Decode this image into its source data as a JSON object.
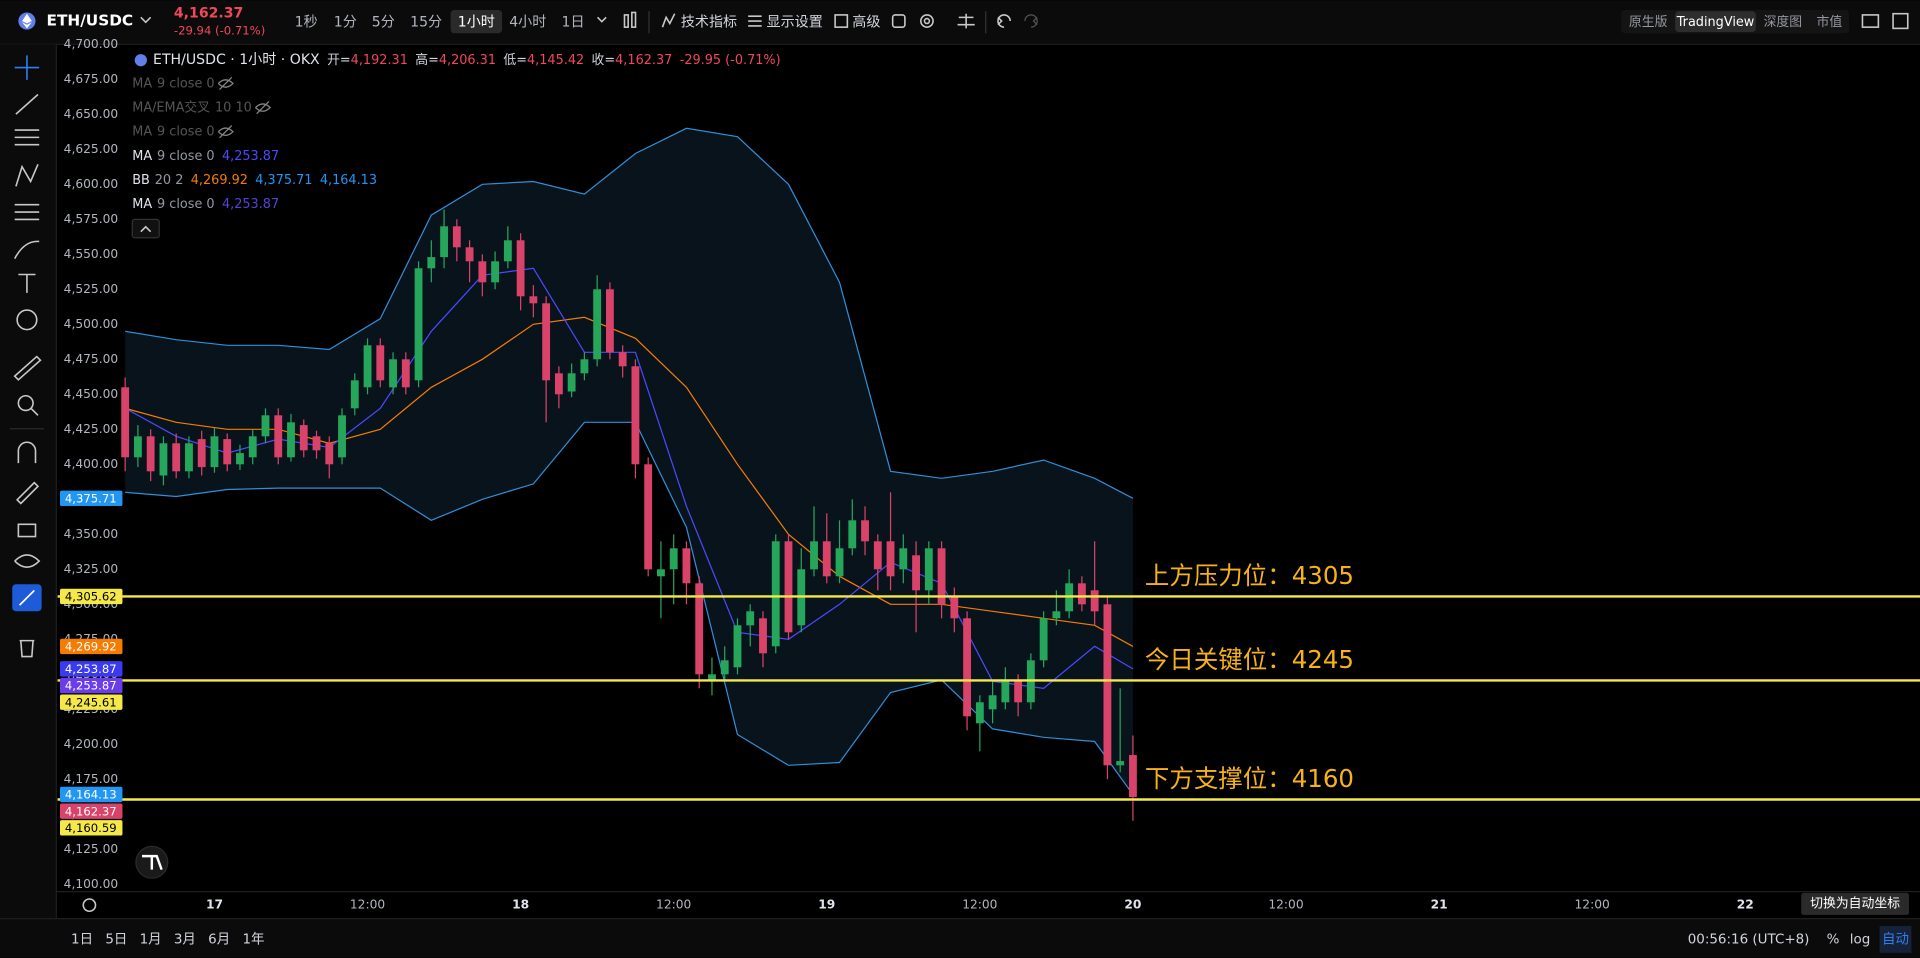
{
  "toolbar": {
    "symbol": "ETH/USDC",
    "price": "4,162.37",
    "change": "-29.94 (-0.71%)",
    "intervals": [
      "1秒",
      "1分",
      "5分",
      "15分",
      "1小时",
      "4小时",
      "1日"
    ],
    "active_interval": 4,
    "tools": [
      "技术指标",
      "显示设置",
      "高级"
    ],
    "views": [
      "原生版",
      "TradingView",
      "深度图",
      "市值"
    ],
    "active_view": 1
  },
  "legend": {
    "symbol": "ETH/USDC · 1小时 · OKX",
    "ohlc": [
      {
        "key": "开=",
        "value": "4,192.31"
      },
      {
        "key": "高=",
        "value": "4,206.31"
      },
      {
        "key": "低=",
        "value": "4,145.42"
      },
      {
        "key": "收=",
        "value": "4,162.37"
      }
    ],
    "change": "-29.95 (-0.71%)",
    "indicators": [
      {
        "name": "MA",
        "params": "9 close 0",
        "hidden": true
      },
      {
        "name": "MA/EMA交叉",
        "params": "10 10",
        "hidden": true
      },
      {
        "name": "MA",
        "params": "9 close 0",
        "hidden": true
      },
      {
        "name": "MA",
        "params": "9 close 0",
        "values": [
          {
            "text": "4,253.87",
            "color": "#4a4aff"
          }
        ]
      },
      {
        "name": "BB",
        "params": "20 2",
        "values": [
          {
            "text": "4,269.92",
            "color": "#f57c00"
          },
          {
            "text": "4,375.71",
            "color": "#2196f3"
          },
          {
            "text": "4,164.13",
            "color": "#2196f3"
          }
        ]
      },
      {
        "name": "MA",
        "params": "9 close 0",
        "values": [
          {
            "text": "4,253.87",
            "color": "#5b3fd6"
          }
        ]
      }
    ]
  },
  "chart_data": {
    "type": "candlestick",
    "categories": [
      null,
      null,
      null,
      null,
      null,
      null,
      null,
      null,
      null,
      null,
      null,
      null,
      null,
      null,
      null,
      null,
      null,
      null,
      null,
      null,
      null,
      null,
      null,
      null,
      null,
      null,
      null,
      null,
      null,
      null,
      null,
      null,
      null,
      null,
      null,
      null,
      null,
      null,
      null,
      null,
      null,
      null,
      null,
      null,
      null,
      null,
      null,
      null,
      null,
      null,
      null,
      null,
      null,
      null,
      null,
      null,
      null,
      null,
      null,
      null,
      null,
      null,
      null,
      null,
      null,
      null,
      null,
      null,
      null,
      null,
      null,
      null,
      null,
      null,
      null,
      null,
      null,
      null,
      null,
      null
    ],
    "open": [
      4455,
      4405,
      4420,
      4392,
      4415,
      4395,
      4418,
      4398,
      4418,
      4400,
      4405,
      4420,
      4435,
      4405,
      4428,
      4420,
      4415,
      4405,
      4440,
      4455,
      4485,
      4455,
      4475,
      4460,
      4540,
      4548,
      4570,
      4555,
      4545,
      4530,
      4545,
      4560,
      4520,
      4515,
      4465,
      4452,
      4465,
      4475,
      4525,
      4480,
      4470,
      4400,
      4320,
      4325,
      4340,
      4315,
      4245,
      4250,
      4255,
      4285,
      4290,
      4270,
      4345,
      4285,
      4325,
      4345,
      4320,
      4340,
      4360,
      4345,
      4345,
      4325,
      4335,
      4310,
      4340,
      4305,
      4290,
      4215,
      4225,
      4230,
      4245,
      4230,
      4260,
      4290,
      4295,
      4315,
      4310,
      4300,
      4185,
      4192.31
    ],
    "high": [
      4462,
      4428,
      4425,
      4420,
      4422,
      4420,
      4424,
      4426,
      4422,
      4414,
      4425,
      4440,
      4440,
      4436,
      4432,
      4424,
      4420,
      4440,
      4465,
      4490,
      4490,
      4480,
      4480,
      4545,
      4560,
      4582,
      4575,
      4560,
      4550,
      4552,
      4570,
      4565,
      4528,
      4520,
      4470,
      4472,
      4480,
      4535,
      4530,
      4485,
      4475,
      4405,
      4345,
      4350,
      4345,
      4320,
      4262,
      4270,
      4290,
      4300,
      4295,
      4350,
      4350,
      4340,
      4370,
      4365,
      4360,
      4375,
      4370,
      4350,
      4380,
      4350,
      4345,
      4345,
      4345,
      4312,
      4295,
      4235,
      4245,
      4255,
      4250,
      4265,
      4295,
      4310,
      4325,
      4320,
      4345,
      4305,
      4240,
      4206.31
    ],
    "low": [
      4395,
      4398,
      4388,
      4385,
      4390,
      4390,
      4392,
      4394,
      4395,
      4396,
      4400,
      4415,
      4400,
      4402,
      4405,
      4404,
      4390,
      4400,
      4435,
      4450,
      4455,
      4450,
      4450,
      4455,
      4530,
      4540,
      4545,
      4530,
      4520,
      4525,
      4540,
      4510,
      4505,
      4430,
      4440,
      4448,
      4460,
      4470,
      4475,
      4462,
      4390,
      4320,
      4290,
      4300,
      4300,
      4240,
      4235,
      4245,
      4250,
      4270,
      4255,
      4265,
      4275,
      4280,
      4320,
      4315,
      4315,
      4335,
      4335,
      4310,
      4310,
      4315,
      4280,
      4300,
      4290,
      4280,
      4210,
      4195,
      4215,
      4225,
      4220,
      4225,
      4255,
      4285,
      4290,
      4295,
      4285,
      4175,
      4180,
      4145.42
    ],
    "close": [
      4405,
      4420,
      4395,
      4415,
      4395,
      4415,
      4398,
      4420,
      4400,
      4408,
      4420,
      4435,
      4405,
      4430,
      4410,
      4410,
      4400,
      4435,
      4460,
      4485,
      4460,
      4475,
      4455,
      4540,
      4548,
      4570,
      4555,
      4545,
      4530,
      4545,
      4560,
      4520,
      4515,
      4460,
      4450,
      4465,
      4475,
      4525,
      4480,
      4470,
      4400,
      4325,
      4325,
      4340,
      4315,
      4250,
      4250,
      4260,
      4285,
      4295,
      4265,
      4345,
      4280,
      4325,
      4345,
      4320,
      4340,
      4360,
      4345,
      4325,
      4320,
      4340,
      4310,
      4340,
      4300,
      4290,
      4220,
      4230,
      4235,
      4245,
      4230,
      4260,
      4290,
      4295,
      4315,
      4300,
      4295,
      4185,
      4188,
      4162.37
    ],
    "up_color": "#26a65b",
    "down_color": "#d9436a",
    "series": [
      {
        "color": "#2f8fd8",
        "x": [
          0,
          4,
          8,
          12,
          16,
          20,
          24,
          28,
          32,
          36,
          40,
          44,
          48,
          52,
          56,
          60,
          64,
          68,
          72,
          76,
          79
        ],
        "values": [
          4495,
          4489,
          4485,
          4485,
          4482,
          4504,
          4578,
          4600,
          4602,
          4593,
          4622,
          4640,
          4634,
          4600,
          4530,
          4395,
          4390,
          4395,
          4403,
          4390,
          4375.71
        ]
      },
      {
        "color": "#2f8fd8",
        "x": [
          0,
          4,
          8,
          12,
          16,
          20,
          24,
          28,
          32,
          36,
          40,
          44,
          48,
          52,
          56,
          60,
          64,
          68,
          72,
          76,
          79
        ],
        "values": [
          4380,
          4377,
          4382,
          4383,
          4383,
          4383,
          4360,
          4375,
          4386,
          4430,
          4430,
          4355,
          4207,
          4185,
          4187,
          4237,
          4246,
          4211,
          4205,
          4202,
          4164.13
        ]
      },
      {
        "color": "#f57c00",
        "x": [
          0,
          4,
          8,
          12,
          16,
          20,
          24,
          28,
          32,
          36,
          40,
          44,
          48,
          52,
          56,
          60,
          64,
          68,
          72,
          76,
          79
        ],
        "values": [
          4440,
          4430,
          4425,
          4425,
          4415,
          4425,
          4455,
          4475,
          4500,
          4505,
          4490,
          4455,
          4400,
          4350,
          4320,
          4300,
          4300,
          4295,
          4290,
          4285,
          4269.92
        ]
      },
      {
        "color": "#4a4aff",
        "x": [
          0,
          4,
          8,
          12,
          16,
          20,
          24,
          28,
          32,
          36,
          40,
          44,
          48,
          52,
          56,
          60,
          64,
          68,
          72,
          76,
          79
        ],
        "values": [
          4440,
          4420,
          4408,
          4418,
          4412,
          4440,
          4495,
          4535,
          4540,
          4480,
          4480,
          4370,
          4280,
          4275,
          4300,
          4330,
          4315,
          4245,
          4240,
          4270,
          4253.87
        ]
      }
    ],
    "band_fill": "#0f2233",
    "xlim": [
      -5.3,
      140.7
    ],
    "xticks": [
      {
        "value": 7,
        "label": "17"
      },
      {
        "value": 19,
        "label": "12:00"
      },
      {
        "value": 31,
        "label": "18"
      },
      {
        "value": 43,
        "label": "12:00"
      },
      {
        "value": 55,
        "label": "19"
      },
      {
        "value": 67,
        "label": "12:00"
      },
      {
        "value": 79,
        "label": "20"
      },
      {
        "value": 91,
        "label": "12:00"
      },
      {
        "value": 103,
        "label": "21"
      },
      {
        "value": 115,
        "label": "12:00"
      },
      {
        "value": 127,
        "label": "22"
      }
    ],
    "ylim": [
      4094.75,
      4700
    ],
    "yticks": [
      {
        "value": 4100,
        "label": "4,100.00"
      },
      {
        "value": 4125,
        "label": "4,125.00"
      },
      {
        "value": 4150,
        "label": "4,150.00"
      },
      {
        "value": 4175,
        "label": "4,175.00"
      },
      {
        "value": 4200,
        "label": "4,200.00"
      },
      {
        "value": 4225,
        "label": "4,225.00"
      },
      {
        "value": 4250,
        "label": "4,250.00"
      },
      {
        "value": 4275,
        "label": "4,275.00"
      },
      {
        "value": 4300,
        "label": "4,300.00"
      },
      {
        "value": 4325,
        "label": "4,325.00"
      },
      {
        "value": 4350,
        "label": "4,350.00"
      },
      {
        "value": 4375,
        "label": "4,375.00"
      },
      {
        "value": 4400,
        "label": "4,400.00"
      },
      {
        "value": 4425,
        "label": "4,425.00"
      },
      {
        "value": 4450,
        "label": "4,450.00"
      },
      {
        "value": 4475,
        "label": "4,475.00"
      },
      {
        "value": 4500,
        "label": "4,500.00"
      },
      {
        "value": 4525,
        "label": "4,525.00"
      },
      {
        "value": 4550,
        "label": "4,550.00"
      },
      {
        "value": 4575,
        "label": "4,575.00"
      },
      {
        "value": 4600,
        "label": "4,600.00"
      },
      {
        "value": 4625,
        "label": "4,625.00"
      },
      {
        "value": 4650,
        "label": "4,650.00"
      },
      {
        "value": 4675,
        "label": "4,675.00"
      },
      {
        "value": 4700,
        "label": "4,700.00"
      }
    ],
    "grid": false,
    "levels": [
      {
        "value": 4305.62,
        "label": "4,305.62",
        "annotation": "上方压力位：4305"
      },
      {
        "value": 4245.61,
        "label": "4,245.61",
        "annotation": "今日关键位：4245"
      },
      {
        "value": 4160.59,
        "label": "4,160.59",
        "annotation": "下方支撑位：4160"
      }
    ],
    "level_color": "#f5e94a",
    "annotation_color": "#f7b21a",
    "price_tags": [
      {
        "value": 4375.71,
        "label": "4,375.71",
        "color": "#2196f3"
      },
      {
        "value": 4269.92,
        "label": "4,269.92",
        "color": "#f57c00"
      },
      {
        "value": 4253.87,
        "label": "4,253.87",
        "color": "#3a3af0"
      },
      {
        "value": 4253.87,
        "label": "4,253.87",
        "color": "#6a3de8"
      },
      {
        "value": 4164.13,
        "label": "4,164.13",
        "color": "#2196f3"
      },
      {
        "value": 4162.37,
        "label": "4,162.37",
        "color": "#d9436a"
      }
    ]
  },
  "bottom_bar": {
    "ranges": [
      "1日",
      "5日",
      "1月",
      "3月",
      "6月",
      "1年"
    ],
    "clock": "00:56:16 (UTC+8)",
    "scale_options": [
      "%",
      "log",
      "自动"
    ],
    "active_scale": 2,
    "tooltip": "切换为自动坐标"
  }
}
